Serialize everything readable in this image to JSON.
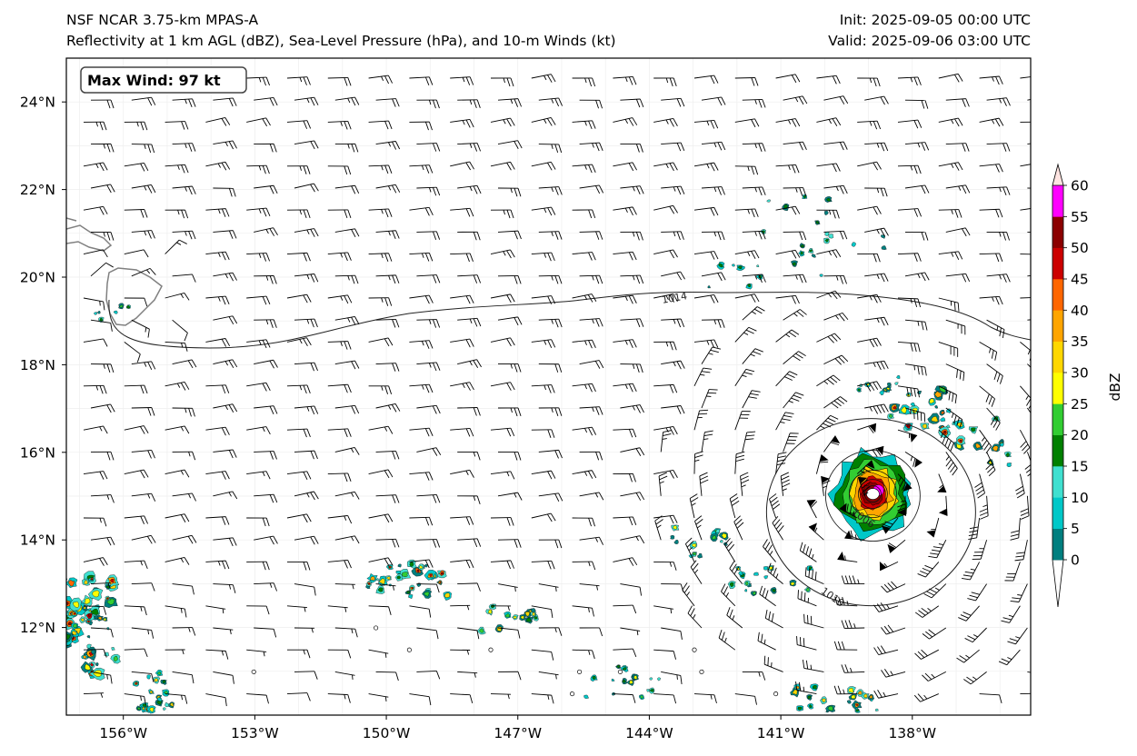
{
  "header": {
    "title_line1": "NSF NCAR 3.75-km MPAS-A",
    "title_line2": "Reflectivity at 1 km AGL (dBZ), Sea-Level Pressure (hPa), and 10-m Winds (kt)",
    "init": "Init: 2025-09-05 00:00 UTC",
    "valid": "Valid: 2025-09-06 03:00 UTC"
  },
  "map": {
    "lon_range": [
      -157.3,
      -135.3
    ],
    "lat_range": [
      10.0,
      25.0
    ],
    "lon_ticks": [
      {
        "value": -156,
        "label": "156°W"
      },
      {
        "value": -153,
        "label": "153°W"
      },
      {
        "value": -150,
        "label": "150°W"
      },
      {
        "value": -147,
        "label": "147°W"
      },
      {
        "value": -144,
        "label": "144°W"
      },
      {
        "value": -141,
        "label": "141°W"
      },
      {
        "value": -138,
        "label": "138°W"
      }
    ],
    "lat_ticks": [
      {
        "value": 24,
        "label": "24°N"
      },
      {
        "value": 22,
        "label": "22°N"
      },
      {
        "value": 20,
        "label": "20°N"
      },
      {
        "value": 18,
        "label": "18°N"
      },
      {
        "value": 16,
        "label": "16°N"
      },
      {
        "value": 14,
        "label": "14°N"
      },
      {
        "value": 12,
        "label": "12°N"
      }
    ],
    "max_wind_label": "Max Wind: 97 kt",
    "storm_center": {
      "lon": -138.9,
      "lat": 15.05
    },
    "isobars": [
      {
        "label": "1014",
        "label_lon": -143.7,
        "label_lat": 19.4
      },
      {
        "label": "1010",
        "label_lon": -140.1,
        "label_lat": 12.8
      },
      {
        "label": "1006",
        "label_lon": -139.4,
        "label_lat": 14.6
      }
    ],
    "coastline_color": "#808080"
  },
  "colorbar": {
    "title": "dBZ",
    "ticks": [
      "0",
      "5",
      "10",
      "15",
      "20",
      "25",
      "30",
      "35",
      "40",
      "45",
      "50",
      "55",
      "60"
    ],
    "colors": [
      "#007f7f",
      "#00c8c8",
      "#40e0d0",
      "#008000",
      "#32cd32",
      "#ffff00",
      "#ffd700",
      "#ffa500",
      "#ff6600",
      "#cc0000",
      "#8b0000",
      "#ff00ff",
      "#ffe4e1"
    ]
  }
}
